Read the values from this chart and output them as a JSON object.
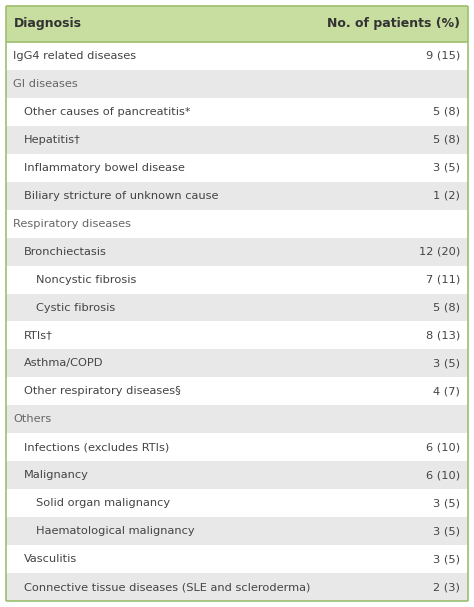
{
  "header": [
    "Diagnosis",
    "No. of patients (%)"
  ],
  "rows": [
    {
      "label": "IgG4 related diseases",
      "value": "9 (15)",
      "indent": 0,
      "bg": "#ffffff",
      "is_section": false
    },
    {
      "label": "GI diseases",
      "value": "",
      "indent": 0,
      "bg": "#e8e8e8",
      "is_section": true
    },
    {
      "label": "Other causes of pancreatitis*",
      "value": "5 (8)",
      "indent": 1,
      "bg": "#ffffff",
      "is_section": false
    },
    {
      "label": "Hepatitis†",
      "value": "5 (8)",
      "indent": 1,
      "bg": "#e8e8e8",
      "is_section": false
    },
    {
      "label": "Inflammatory bowel disease",
      "value": "3 (5)",
      "indent": 1,
      "bg": "#ffffff",
      "is_section": false
    },
    {
      "label": "Biliary stricture of unknown cause",
      "value": "1 (2)",
      "indent": 1,
      "bg": "#e8e8e8",
      "is_section": false
    },
    {
      "label": "Respiratory diseases",
      "value": "",
      "indent": 0,
      "bg": "#ffffff",
      "is_section": true
    },
    {
      "label": "Bronchiectasis",
      "value": "12 (20)",
      "indent": 1,
      "bg": "#e8e8e8",
      "is_section": false
    },
    {
      "label": "Noncystic fibrosis",
      "value": "7 (11)",
      "indent": 2,
      "bg": "#ffffff",
      "is_section": false
    },
    {
      "label": "Cystic fibrosis",
      "value": "5 (8)",
      "indent": 2,
      "bg": "#e8e8e8",
      "is_section": false
    },
    {
      "label": "RTIs†",
      "value": "8 (13)",
      "indent": 1,
      "bg": "#ffffff",
      "is_section": false
    },
    {
      "label": "Asthma/COPD",
      "value": "3 (5)",
      "indent": 1,
      "bg": "#e8e8e8",
      "is_section": false
    },
    {
      "label": "Other respiratory diseases§",
      "value": "4 (7)",
      "indent": 1,
      "bg": "#ffffff",
      "is_section": false
    },
    {
      "label": "Others",
      "value": "",
      "indent": 0,
      "bg": "#e8e8e8",
      "is_section": true
    },
    {
      "label": "Infections (excludes RTIs)",
      "value": "6 (10)",
      "indent": 1,
      "bg": "#ffffff",
      "is_section": false
    },
    {
      "label": "Malignancy",
      "value": "6 (10)",
      "indent": 1,
      "bg": "#e8e8e8",
      "is_section": false
    },
    {
      "label": "Solid organ malignancy",
      "value": "3 (5)",
      "indent": 2,
      "bg": "#ffffff",
      "is_section": false
    },
    {
      "label": "Haematological malignancy",
      "value": "3 (5)",
      "indent": 2,
      "bg": "#e8e8e8",
      "is_section": false
    },
    {
      "label": "Vasculitis",
      "value": "3 (5)",
      "indent": 1,
      "bg": "#ffffff",
      "is_section": false
    },
    {
      "label": "Connective tissue diseases (SLE and scleroderma)",
      "value": "2 (3)",
      "indent": 1,
      "bg": "#e8e8e8",
      "is_section": false
    }
  ],
  "header_bg": "#c8dda0",
  "header_text_color": "#333333",
  "section_text_color": "#666666",
  "normal_text_color": "#444444",
  "border_color": "#9dbf6e",
  "fig_width": 4.74,
  "fig_height": 6.07,
  "dpi": 100,
  "font_size_header": 9.0,
  "font_size_row": 8.2,
  "font_family": "DejaVu Sans"
}
